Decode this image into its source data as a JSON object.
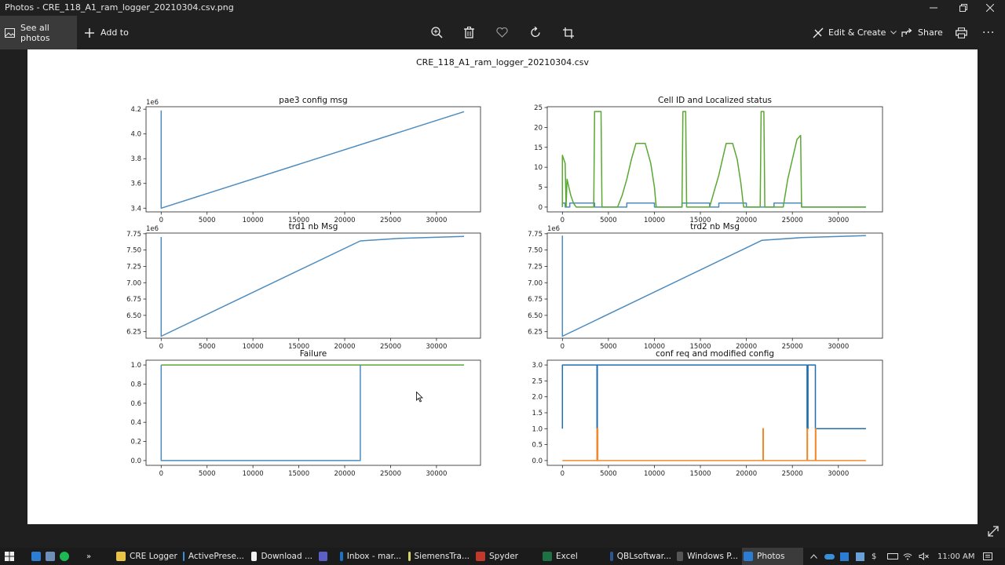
{
  "window": {
    "title": "Photos - CRE_118_A1_ram_logger_20210304.csv.png",
    "controls": [
      "minimize-icon",
      "restore-icon",
      "close-icon"
    ]
  },
  "toolbar": {
    "see_all_label": "See all photos",
    "add_to_label": "Add to",
    "center_icons": [
      "zoom-icon",
      "delete-icon",
      "favorite-icon",
      "rotate-icon",
      "crop-icon"
    ],
    "edit_create_label": "Edit & Create",
    "share_label": "Share",
    "more_label": "···"
  },
  "figure": {
    "suptitle": "CRE_118_A1_ram_logger_20210304.csv"
  },
  "chart_data": [
    {
      "type": "line",
      "title": "pae3 config msg",
      "offset_label": "1e6",
      "xlim": [
        -1650,
        34800
      ],
      "ylim": [
        3.37,
        4.22
      ],
      "x_ticks": [
        0,
        5000,
        10000,
        15000,
        20000,
        25000,
        30000
      ],
      "y_ticks": [
        "3.4",
        "3.6",
        "3.8",
        "4.0",
        "4.2"
      ],
      "series": [
        {
          "color": "#4c8cbf",
          "points": [
            [
              0,
              4.19
            ],
            [
              0,
              3.4
            ],
            [
              33000,
              4.18
            ]
          ]
        }
      ]
    },
    {
      "type": "line",
      "title": "Cell ID and Localized status",
      "offset_label": "",
      "xlim": [
        -1650,
        34800
      ],
      "ylim": [
        -1.2,
        25.2
      ],
      "x_ticks": [
        0,
        5000,
        10000,
        15000,
        20000,
        25000,
        30000
      ],
      "y_ticks": [
        "0",
        "5",
        "10",
        "15",
        "20",
        "25"
      ],
      "series": [
        {
          "color": "#4c8cbf",
          "points": [
            [
              0,
              0
            ],
            [
              0,
              1
            ],
            [
              300,
              1
            ],
            [
              300,
              0
            ],
            [
              800,
              0
            ],
            [
              800,
              1
            ],
            [
              3500,
              1
            ],
            [
              3500,
              0
            ],
            [
              7000,
              0
            ],
            [
              7000,
              1
            ],
            [
              10000,
              1
            ],
            [
              10000,
              0
            ],
            [
              13000,
              0
            ],
            [
              13000,
              1
            ],
            [
              16000,
              1
            ],
            [
              16000,
              0
            ],
            [
              17000,
              0
            ],
            [
              17000,
              1
            ],
            [
              20000,
              1
            ],
            [
              20000,
              0
            ],
            [
              23000,
              0
            ],
            [
              23000,
              1
            ],
            [
              26000,
              1
            ],
            [
              26000,
              0
            ],
            [
              33000,
              0
            ]
          ]
        },
        {
          "color": "#5aa832",
          "points": [
            [
              0,
              0
            ],
            [
              0,
              13
            ],
            [
              300,
              11
            ],
            [
              400,
              0
            ],
            [
              500,
              7
            ],
            [
              700,
              5
            ],
            [
              900,
              3
            ],
            [
              1200,
              1
            ],
            [
              1500,
              0
            ],
            [
              3400,
              0
            ],
            [
              3500,
              24
            ],
            [
              4200,
              24
            ],
            [
              4300,
              0
            ],
            [
              6000,
              0
            ],
            [
              6500,
              3
            ],
            [
              7000,
              7
            ],
            [
              7500,
              12
            ],
            [
              8000,
              16
            ],
            [
              9000,
              16
            ],
            [
              9600,
              11
            ],
            [
              10000,
              5
            ],
            [
              10200,
              0
            ],
            [
              13000,
              0
            ],
            [
              13100,
              24
            ],
            [
              13400,
              24
            ],
            [
              13500,
              0
            ],
            [
              16000,
              0
            ],
            [
              16500,
              4
            ],
            [
              17000,
              8
            ],
            [
              17500,
              13
            ],
            [
              17800,
              16
            ],
            [
              18500,
              16
            ],
            [
              19000,
              12
            ],
            [
              19400,
              6
            ],
            [
              19700,
              0
            ],
            [
              21500,
              0
            ],
            [
              21600,
              24
            ],
            [
              21900,
              24
            ],
            [
              22000,
              0
            ],
            [
              24000,
              0
            ],
            [
              24500,
              7
            ],
            [
              25000,
              12
            ],
            [
              25500,
              17
            ],
            [
              25900,
              18
            ],
            [
              26000,
              0
            ],
            [
              33000,
              0
            ]
          ]
        }
      ]
    },
    {
      "type": "line",
      "title": "trd1 nb Msg",
      "offset_label": "1e6",
      "xlim": [
        -1650,
        34800
      ],
      "ylim": [
        6.15,
        7.76
      ],
      "x_ticks": [
        0,
        5000,
        10000,
        15000,
        20000,
        25000,
        30000
      ],
      "y_ticks": [
        "6.25",
        "6.50",
        "6.75",
        "7.00",
        "7.25",
        "7.50",
        "7.75"
      ],
      "series": [
        {
          "color": "#4c8cbf",
          "points": [
            [
              0,
              7.7
            ],
            [
              0,
              6.18
            ],
            [
              21700,
              7.64
            ],
            [
              26000,
              7.68
            ],
            [
              33000,
              7.71
            ]
          ]
        }
      ]
    },
    {
      "type": "line",
      "title": "trd2 nb Msg",
      "offset_label": "1e6",
      "xlim": [
        -1650,
        34800
      ],
      "ylim": [
        6.15,
        7.76
      ],
      "x_ticks": [
        0,
        5000,
        10000,
        15000,
        20000,
        25000,
        30000
      ],
      "y_ticks": [
        "6.25",
        "6.50",
        "6.75",
        "7.00",
        "7.25",
        "7.50",
        "7.75"
      ],
      "series": [
        {
          "color": "#4c8cbf",
          "points": [
            [
              0,
              7.72
            ],
            [
              0,
              6.18
            ],
            [
              21700,
              7.65
            ],
            [
              26000,
              7.69
            ],
            [
              33000,
              7.72
            ]
          ]
        }
      ]
    },
    {
      "type": "line",
      "title": "Failure",
      "offset_label": "",
      "xlim": [
        -1650,
        34800
      ],
      "ylim": [
        -0.05,
        1.05
      ],
      "x_ticks": [
        0,
        5000,
        10000,
        15000,
        20000,
        25000,
        30000
      ],
      "y_ticks": [
        "0.0",
        "0.2",
        "0.4",
        "0.6",
        "0.8",
        "1.0"
      ],
      "series": [
        {
          "color": "#5aa832",
          "points": [
            [
              0,
              1
            ],
            [
              33000,
              1
            ]
          ]
        },
        {
          "color": "#4c8cbf",
          "points": [
            [
              0,
              1
            ],
            [
              0,
              0
            ],
            [
              21700,
              0
            ],
            [
              21700,
              1
            ]
          ]
        }
      ]
    },
    {
      "type": "line",
      "title": "conf req and modified config",
      "offset_label": "",
      "xlim": [
        -1650,
        34800
      ],
      "ylim": [
        -0.15,
        3.15
      ],
      "x_ticks": [
        0,
        5000,
        10000,
        15000,
        20000,
        25000,
        30000
      ],
      "y_ticks": [
        "0.0",
        "0.5",
        "1.0",
        "1.5",
        "2.0",
        "2.5",
        "3.0"
      ],
      "series": [
        {
          "color": "#1f6fb0",
          "points": [
            [
              0,
              1
            ],
            [
              0,
              3
            ],
            [
              3750,
              3
            ],
            [
              3750,
              0
            ],
            [
              3800,
              0
            ],
            [
              3800,
              3
            ],
            [
              26600,
              3
            ],
            [
              26600,
              1
            ],
            [
              26700,
              1
            ],
            [
              26700,
              3
            ],
            [
              27500,
              3
            ],
            [
              27500,
              1
            ],
            [
              33000,
              1
            ]
          ]
        },
        {
          "color": "#f08a2c",
          "points": [
            [
              0,
              0
            ],
            [
              3750,
              0
            ],
            [
              3750,
              1
            ],
            [
              3850,
              1
            ],
            [
              3850,
              0
            ],
            [
              21800,
              0
            ],
            [
              21800,
              1
            ],
            [
              21850,
              1
            ],
            [
              21850,
              0
            ],
            [
              26600,
              0
            ],
            [
              26600,
              1
            ],
            [
              26650,
              1
            ],
            [
              26650,
              0
            ],
            [
              27500,
              0
            ],
            [
              27500,
              1
            ],
            [
              27550,
              1
            ],
            [
              27550,
              0
            ],
            [
              33000,
              0
            ]
          ]
        }
      ]
    }
  ],
  "taskbar": {
    "items": [
      {
        "label": "CRE Logger",
        "color": "#e8c34a"
      },
      {
        "label": "ActivePrese...",
        "color": "#3a8fd9"
      },
      {
        "label": "Download ...",
        "color": "#f2f2f2"
      },
      {
        "label": "",
        "color": "#5b5fc7"
      },
      {
        "label": "Inbox - mar...",
        "color": "#1a73c8"
      },
      {
        "label": "SiemensTra...",
        "color": "#d7d36a"
      },
      {
        "label": "Spyder",
        "color": "#c0392b"
      },
      {
        "label": "Excel",
        "color": "#1e7145"
      },
      {
        "label": "QBLsoftwar...",
        "color": "#2b5797"
      },
      {
        "label": "Windows P...",
        "color": "#555555"
      },
      {
        "label": "Photos",
        "color": "#2b7cd3"
      }
    ],
    "time": "11:00 AM"
  }
}
